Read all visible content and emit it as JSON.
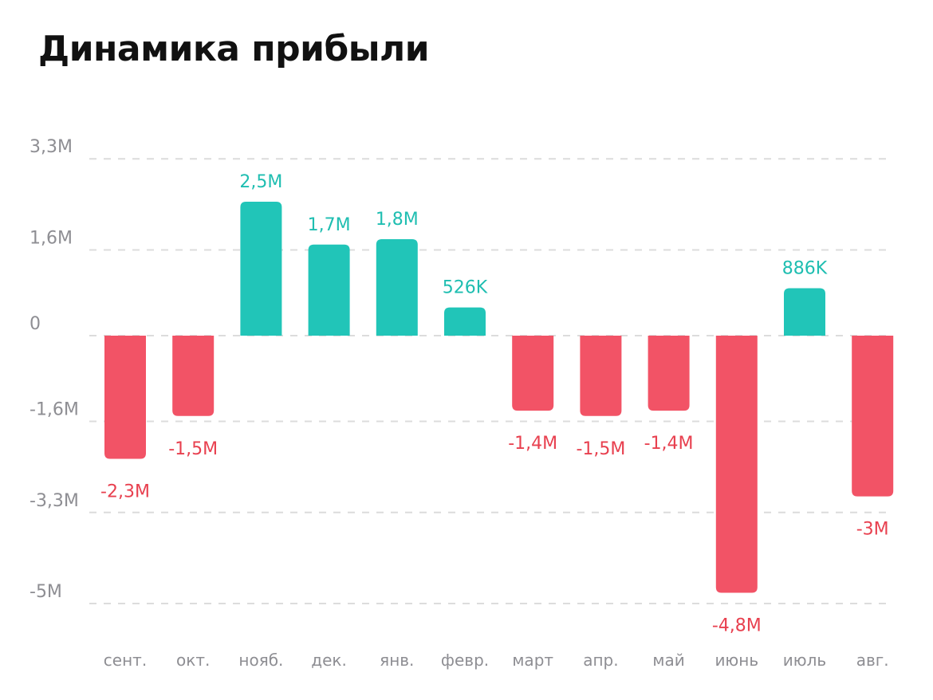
{
  "title": "Динамика прибыли",
  "colors": {
    "positive": "#21c5b8",
    "negative": "#f25366",
    "positive_label": "#1fbeb1",
    "negative_label": "#e8404f"
  },
  "chart_data": {
    "type": "bar",
    "title": "Динамика прибыли",
    "categories": [
      "сент.",
      "окт.",
      "нояб.",
      "дек.",
      "янв.",
      "февр.",
      "март",
      "апр.",
      "май",
      "июнь",
      "июль",
      "авг."
    ],
    "values": [
      -2300000,
      -1500000,
      2500000,
      1700000,
      1800000,
      526000,
      -1400000,
      -1500000,
      -1400000,
      -4800000,
      886000,
      -3000000
    ],
    "data_labels": [
      "-2,3M",
      "-1,5M",
      "2,5M",
      "1,7M",
      "1,8M",
      "526K",
      "-1,4M",
      "-1,5M",
      "-1,4M",
      "-4,8M",
      "886K",
      "-3M"
    ],
    "yticks": [
      3300000,
      1600000,
      0,
      -1600000,
      -3300000,
      -5000000
    ],
    "ytick_labels": [
      "3,3M",
      "1,6M",
      "0",
      "-1,6M",
      "-3,3M",
      "-5M"
    ],
    "ylim": [
      -5000000,
      3300000
    ],
    "xlabel": "",
    "ylabel": "",
    "grid": true,
    "legend": "none"
  }
}
